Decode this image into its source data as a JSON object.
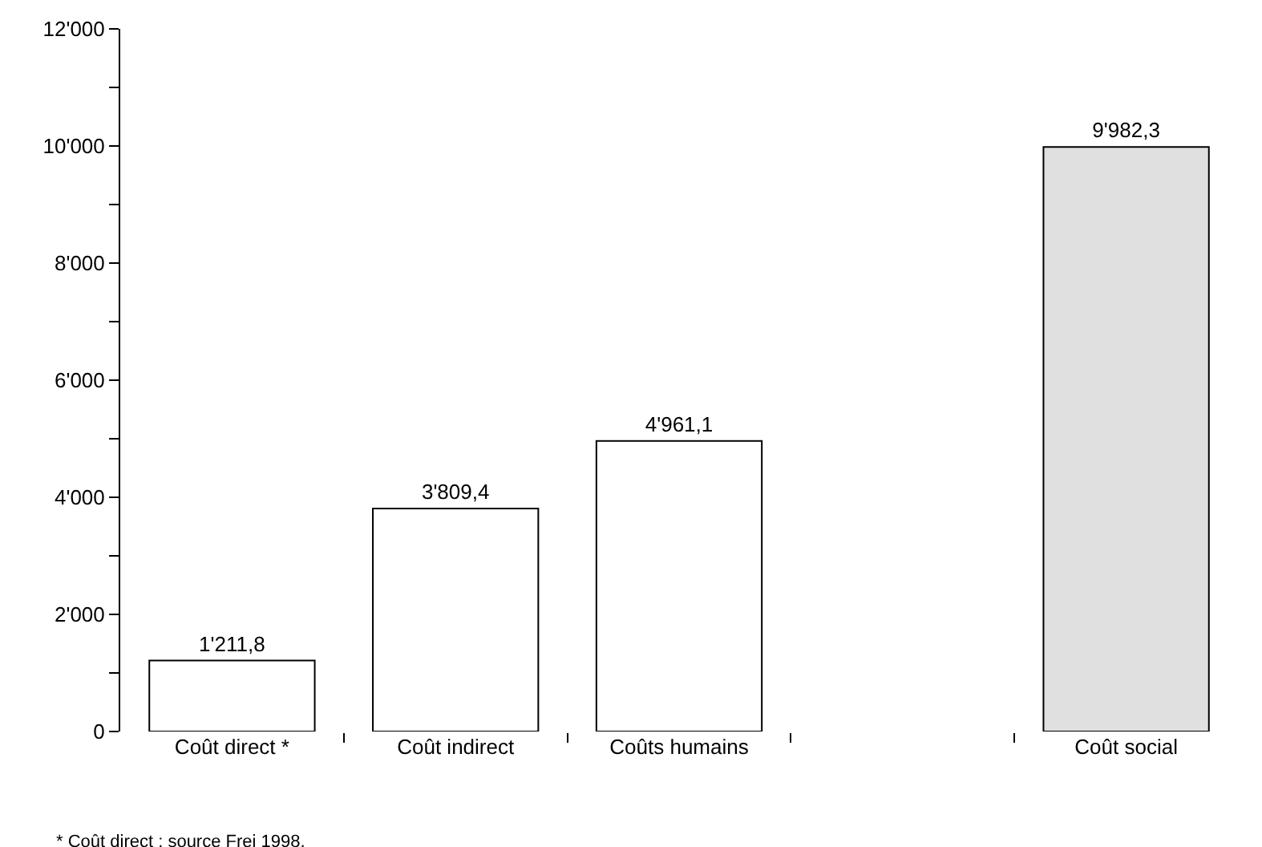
{
  "chart_data": {
    "type": "bar",
    "categories": [
      "Coût direct *",
      "Coût indirect",
      "Coûts humains",
      null,
      "Coût social"
    ],
    "values": [
      1211.8,
      3809.4,
      4961.1,
      null,
      9982.3
    ],
    "colors": [
      "#ffffff",
      "#ffffff",
      "#ffffff",
      "#ffffff",
      "#e0e0e0"
    ],
    "value_labels": [
      "1'211,8",
      "3'809,4",
      "4'961,1",
      null,
      "9'982,3"
    ],
    "ylim": [
      0,
      12000
    ],
    "yticks": [
      {
        "value": 0,
        "label": "0"
      },
      {
        "value": 1000,
        "label": null
      },
      {
        "value": 2000,
        "label": "2'000"
      },
      {
        "value": 3000,
        "label": null
      },
      {
        "value": 4000,
        "label": "4'000"
      },
      {
        "value": 5000,
        "label": null
      },
      {
        "value": 6000,
        "label": "6'000"
      },
      {
        "value": 7000,
        "label": null
      },
      {
        "value": 8000,
        "label": "8'000"
      },
      {
        "value": 9000,
        "label": null
      },
      {
        "value": 10000,
        "label": "10'000"
      },
      {
        "value": 11000,
        "label": null
      },
      {
        "value": 12000,
        "label": "12'000"
      }
    ],
    "grid": false,
    "annotations": [
      "* Coût direct : source Frei 1998."
    ]
  }
}
